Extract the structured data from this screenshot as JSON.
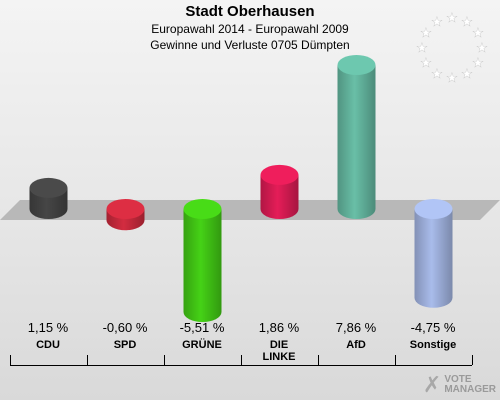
{
  "header": {
    "title": "Stadt Oberhausen",
    "subtitle1": "Europawahl 2014 - Europawahl 2009",
    "subtitle2": "Gewinne und Verluste 0705 Dümpten"
  },
  "logo": {
    "mark": "✗",
    "line1": "VOTE",
    "line2": "MANAGER",
    "icon": "vote-manager-logo"
  },
  "eu_flag": {
    "icon": "eu-star-circle",
    "star_color": "#ffffff"
  },
  "chart_data": {
    "type": "bar",
    "title": "Stadt Oberhausen",
    "categories": [
      "CDU",
      "SPD",
      "GRÜNE",
      "DIE LINKE",
      "AfD",
      "Sonstige"
    ],
    "category_lines": [
      [
        "CDU"
      ],
      [
        "SPD"
      ],
      [
        "GRÜNE"
      ],
      [
        "DIE",
        "LINKE"
      ],
      [
        "AfD"
      ],
      [
        "Sonstige"
      ]
    ],
    "values": [
      1.15,
      -0.6,
      -5.51,
      1.86,
      7.86,
      -4.75
    ],
    "value_labels": [
      "1,15 %",
      "-0,60 %",
      "-5,51 %",
      "1,86 %",
      "7,86 %",
      "-4,75 %"
    ],
    "colors": [
      "#404040",
      "#c0283a",
      "#3fbf14",
      "#d01a50",
      "#5fae98",
      "#9aabd6"
    ],
    "ylim": [
      -5.51,
      7.86
    ],
    "xlabel": "",
    "ylabel": "",
    "grid": false
  }
}
